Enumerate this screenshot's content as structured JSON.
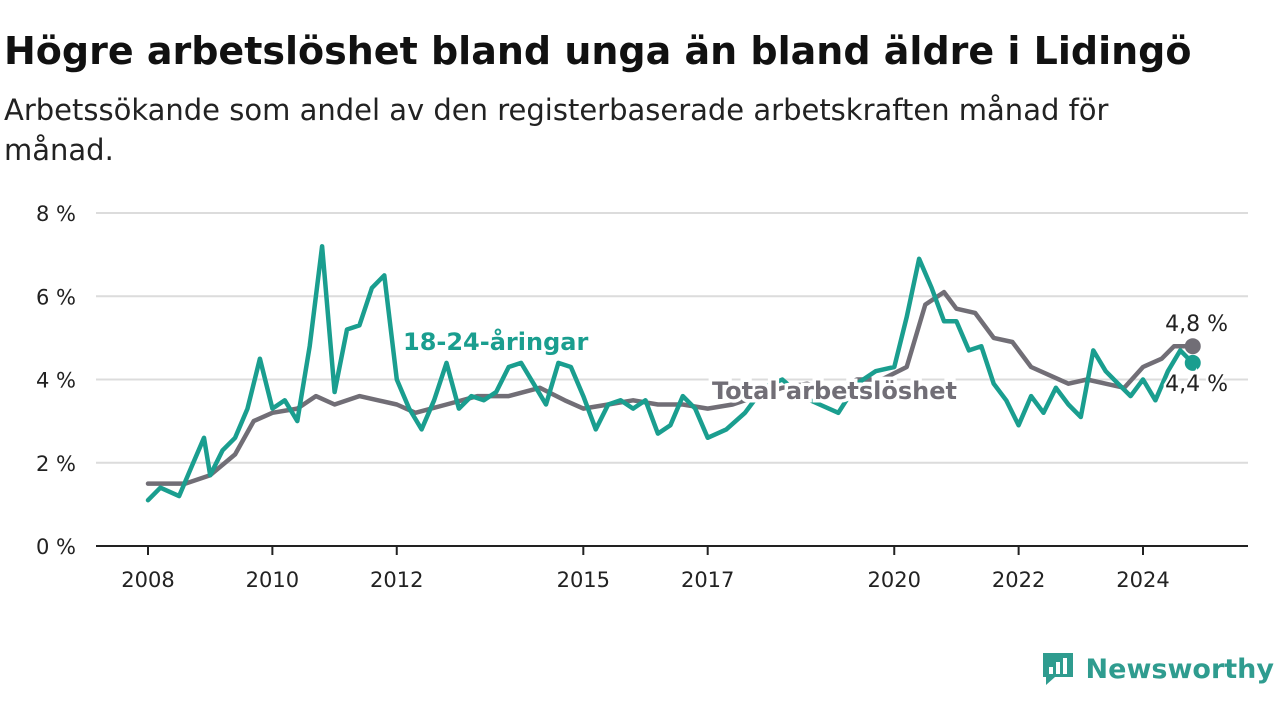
{
  "header": {
    "title": "Högre arbetslöshet bland unga än bland äldre i Lidingö",
    "subtitle": "Arbetssökande som andel av den registerbaserade arbetskraften månad för månad."
  },
  "brand": {
    "name": "Newsworthy",
    "icon": "newsworthy-logo-icon",
    "color": "#2f9c8f"
  },
  "chart_data": {
    "type": "line",
    "y_unit": "%",
    "ylim": [
      0,
      8
    ],
    "y_ticks": [
      0,
      2,
      4,
      6,
      8
    ],
    "y_tick_labels": [
      "0 %",
      "2 %",
      "4 %",
      "6 %",
      "8 %"
    ],
    "x_ticks": [
      2008,
      2010,
      2012,
      2015,
      2017,
      2020,
      2022,
      2024
    ],
    "grid": true,
    "series": [
      {
        "name": "Total arbetslöshet",
        "color": "#716e76",
        "end_label": "4,8 %",
        "x": [
          2008.0,
          2008.3,
          2008.6,
          2009.0,
          2009.4,
          2009.7,
          2010.0,
          2010.4,
          2010.7,
          2011.0,
          2011.4,
          2011.7,
          2012.0,
          2012.3,
          2012.8,
          2013.3,
          2013.8,
          2014.3,
          2014.7,
          2015.0,
          2015.4,
          2015.8,
          2016.2,
          2016.6,
          2017.0,
          2017.4,
          2017.8,
          2018.2,
          2018.6,
          2019.0,
          2019.4,
          2019.8,
          2020.2,
          2020.5,
          2020.8,
          2021.0,
          2021.3,
          2021.6,
          2021.9,
          2022.2,
          2022.5,
          2022.8,
          2023.1,
          2023.4,
          2023.7,
          2024.0,
          2024.3,
          2024.5,
          2024.8
        ],
        "y": [
          1.5,
          1.5,
          1.5,
          1.7,
          2.2,
          3.0,
          3.2,
          3.3,
          3.6,
          3.4,
          3.6,
          3.5,
          3.4,
          3.2,
          3.4,
          3.6,
          3.6,
          3.8,
          3.5,
          3.3,
          3.4,
          3.5,
          3.4,
          3.4,
          3.3,
          3.4,
          3.6,
          3.8,
          3.9,
          3.7,
          4.0,
          4.0,
          4.3,
          5.8,
          6.1,
          5.7,
          5.6,
          5.0,
          4.9,
          4.3,
          4.1,
          3.9,
          4.0,
          3.9,
          3.8,
          4.3,
          4.5,
          4.8,
          4.8
        ]
      },
      {
        "name": "18-24-åringar",
        "color": "#1a9e8f",
        "end_label": "4,4 %",
        "x": [
          2008.0,
          2008.2,
          2008.5,
          2008.7,
          2008.9,
          2009.0,
          2009.2,
          2009.4,
          2009.6,
          2009.8,
          2010.0,
          2010.2,
          2010.4,
          2010.6,
          2010.8,
          2011.0,
          2011.2,
          2011.4,
          2011.6,
          2011.8,
          2012.0,
          2012.2,
          2012.4,
          2012.6,
          2012.8,
          2013.0,
          2013.2,
          2013.4,
          2013.6,
          2013.8,
          2014.0,
          2014.2,
          2014.4,
          2014.6,
          2014.8,
          2015.0,
          2015.2,
          2015.4,
          2015.6,
          2015.8,
          2016.0,
          2016.2,
          2016.4,
          2016.6,
          2016.8,
          2017.0,
          2017.3,
          2017.6,
          2017.9,
          2018.2,
          2018.5,
          2018.8,
          2019.1,
          2019.4,
          2019.7,
          2020.0,
          2020.2,
          2020.4,
          2020.6,
          2020.8,
          2021.0,
          2021.2,
          2021.4,
          2021.6,
          2021.8,
          2022.0,
          2022.2,
          2022.4,
          2022.6,
          2022.8,
          2023.0,
          2023.2,
          2023.4,
          2023.6,
          2023.8,
          2024.0,
          2024.2,
          2024.4,
          2024.6,
          2024.8
        ],
        "y": [
          1.1,
          1.4,
          1.2,
          1.9,
          2.6,
          1.7,
          2.3,
          2.6,
          3.3,
          4.5,
          3.3,
          3.5,
          3.0,
          4.8,
          7.2,
          3.7,
          5.2,
          5.3,
          6.2,
          6.5,
          4.0,
          3.3,
          2.8,
          3.5,
          4.4,
          3.3,
          3.6,
          3.5,
          3.7,
          4.3,
          4.4,
          3.9,
          3.4,
          4.4,
          4.3,
          3.6,
          2.8,
          3.4,
          3.5,
          3.3,
          3.5,
          2.7,
          2.9,
          3.6,
          3.3,
          2.6,
          2.8,
          3.2,
          3.8,
          4.0,
          3.6,
          3.4,
          3.2,
          3.9,
          4.2,
          4.3,
          5.5,
          6.9,
          6.2,
          5.4,
          5.4,
          4.7,
          4.8,
          3.9,
          3.5,
          2.9,
          3.6,
          3.2,
          3.8,
          3.4,
          3.1,
          4.7,
          4.2,
          3.9,
          3.6,
          4.0,
          3.5,
          4.2,
          4.7,
          4.4
        ]
      }
    ]
  }
}
